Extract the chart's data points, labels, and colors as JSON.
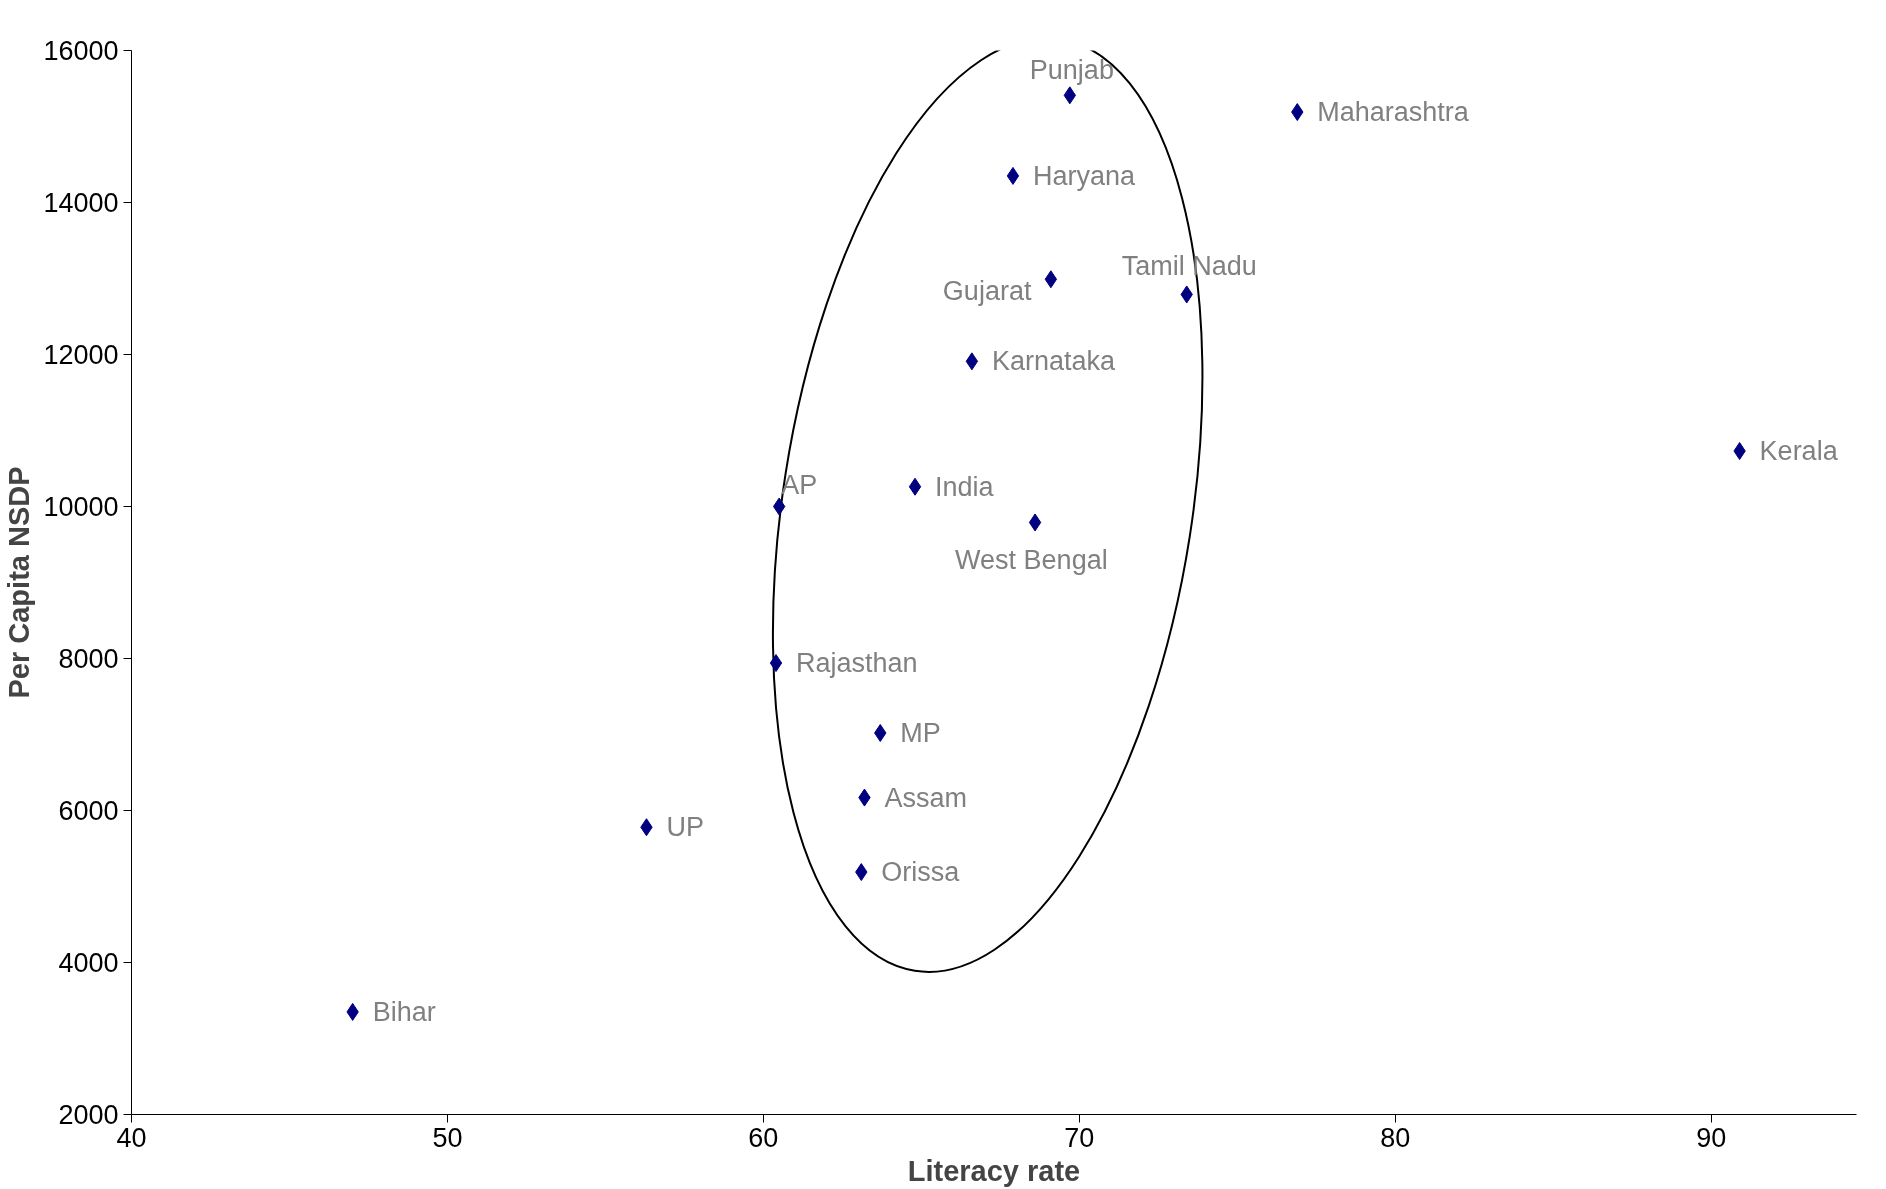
{
  "chart_data": {
    "type": "scatter",
    "xlabel": "Literacy rate",
    "ylabel": "Per Capita NSDP",
    "x": [
      47.0,
      56.3,
      60.5,
      60.4,
      63.7,
      63.2,
      63.1,
      64.8,
      68.6,
      66.6,
      69.1,
      73.4,
      67.9,
      69.7,
      76.9,
      90.9
    ],
    "values": [
      3350,
      5780,
      10000,
      7940,
      7020,
      6170,
      5190,
      10260,
      9790,
      11910,
      12990,
      12790,
      14350,
      15410,
      15190,
      10730
    ],
    "color": "#000080",
    "marker": "diamond",
    "grid": false,
    "xlim": [
      40,
      94.6
    ],
    "xticks": [
      40,
      50,
      60,
      70,
      80,
      90
    ],
    "ylim": [
      2000,
      16000
    ],
    "yticks": [
      2000,
      4000,
      6000,
      8000,
      10000,
      12000,
      14000,
      16000
    ],
    "annotations": [
      {
        "text": "Bihar",
        "x": 47.0,
        "y": 3350
      },
      {
        "text": "UP",
        "x": 56.3,
        "y": 5780
      },
      {
        "text": "AP",
        "x": 60.5,
        "y": 10000
      },
      {
        "text": "Rajasthan",
        "x": 60.4,
        "y": 7940
      },
      {
        "text": "MP",
        "x": 63.7,
        "y": 7020
      },
      {
        "text": "Assam",
        "x": 63.2,
        "y": 6170
      },
      {
        "text": "Orissa",
        "x": 63.1,
        "y": 5190
      },
      {
        "text": "India",
        "x": 64.8,
        "y": 10260
      },
      {
        "text": "West Bengal",
        "x": 68.6,
        "y": 9790
      },
      {
        "text": "Karnataka",
        "x": 66.6,
        "y": 11910
      },
      {
        "text": "Gujarat",
        "x": 69.1,
        "y": 12990
      },
      {
        "text": "Tamil Nadu",
        "x": 73.4,
        "y": 12790
      },
      {
        "text": "Haryana",
        "x": 67.9,
        "y": 14350
      },
      {
        "text": "Punjab",
        "x": 69.7,
        "y": 15410
      },
      {
        "text": "Maharashtra",
        "x": 76.9,
        "y": 15190
      },
      {
        "text": "Kerala",
        "x": 90.9,
        "y": 10730
      }
    ]
  }
}
